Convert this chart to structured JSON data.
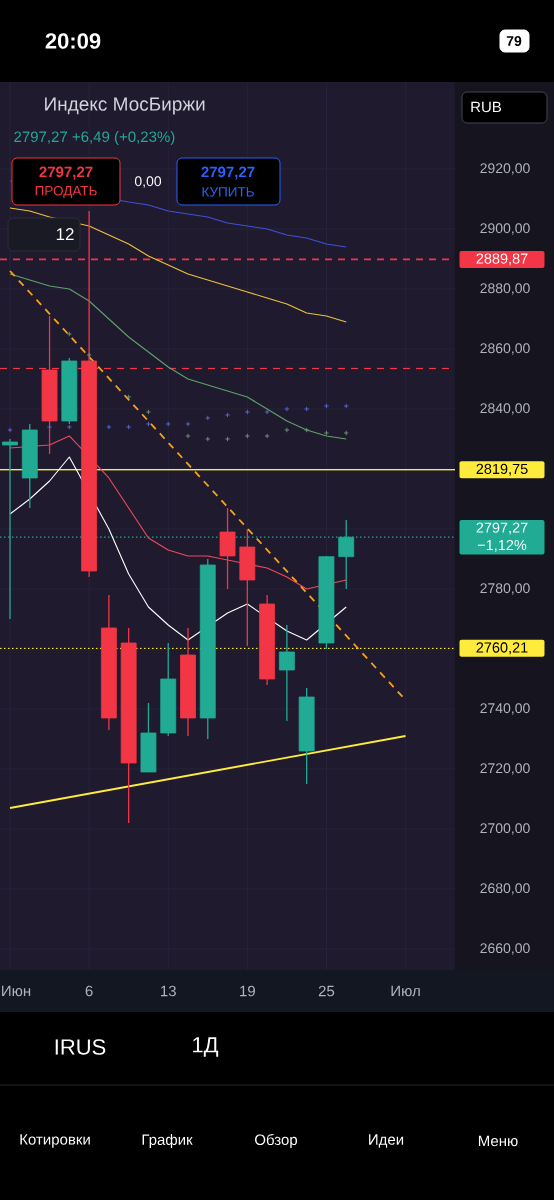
{
  "chart_data": {
    "type": "candlestick",
    "title": "Индекс МосБиржи",
    "subtitle": "2797,27 +6,49 (+0,23%)",
    "categories": [
      "Июн",
      null,
      null,
      null,
      "6",
      null,
      null,
      null,
      "13",
      null,
      null,
      null,
      "19",
      null,
      null,
      null,
      "25",
      null,
      null,
      null,
      "Июл"
    ],
    "ohlc": [
      [
        2828,
        2830,
        2770,
        2829
      ],
      [
        2817,
        2835,
        2807,
        2833
      ],
      [
        2853,
        2871,
        2825,
        2836
      ],
      [
        2836,
        2857,
        2835,
        2856
      ],
      [
        2856,
        2906,
        2784,
        2786
      ],
      [
        2767,
        2778,
        2733,
        2737
      ],
      [
        2762,
        2767,
        2702,
        2722
      ],
      [
        2719,
        2742,
        2719,
        2732
      ],
      [
        2732,
        2762,
        2731,
        2750
      ],
      [
        2758,
        2767,
        2731,
        2737
      ],
      [
        2737,
        2790,
        2730,
        2788
      ],
      [
        2799,
        2807,
        2780,
        2791
      ],
      [
        2794,
        2800,
        2761,
        2783
      ],
      [
        2775,
        2778,
        2748,
        2750
      ],
      [
        2753,
        2768,
        2736,
        2759
      ],
      [
        2726,
        2747,
        2715,
        2744
      ],
      [
        2762,
        2791,
        2760,
        2790.78
      ],
      [
        2790.78,
        2803,
        2780,
        2797.27
      ],
      null,
      null,
      null
    ],
    "colors": [
      "#22ab94",
      "#22ab94",
      "#f23645",
      "#22ab94",
      "#f23645",
      "#f23645",
      "#f23645",
      "#22ab94",
      "#22ab94",
      "#f23645",
      "#22ab94",
      "#f23645",
      "#f23645",
      "#f23645",
      "#22ab94",
      "#22ab94",
      "#22ab94",
      "#22ab94",
      null,
      null,
      null
    ],
    "series": [
      {
        "type": "line",
        "color": "#3f51d9",
        "values": [
          2916,
          null,
          null,
          null,
          null,
          null,
          2909,
          2908,
          2906,
          2905,
          2904,
          2902,
          2901,
          2900,
          2898,
          2897,
          2895,
          2894,
          null,
          null,
          null
        ]
      },
      {
        "type": "line",
        "color": "#f0c23b",
        "values": [
          2907,
          2906,
          2904,
          null,
          2901,
          2898,
          2895,
          2891,
          2888,
          2885,
          2883,
          2881,
          2879,
          2877,
          2875,
          2872,
          2871,
          2869,
          null,
          null,
          null
        ]
      },
      {
        "type": "line",
        "color": "#5ea36c",
        "values": [
          2885,
          2883,
          2881,
          2880,
          2876,
          2870,
          2864,
          2859,
          2854,
          2850,
          2848,
          2846,
          2844,
          2840,
          2836,
          2833,
          2831,
          2830,
          null,
          null,
          null
        ]
      },
      {
        "type": "line",
        "color": "#f04a5a",
        "values": [
          2827,
          null,
          2828,
          2831,
          null,
          2817,
          2807,
          2797,
          2793,
          2791,
          2791,
          null,
          null,
          2787,
          2784,
          2780,
          null,
          2783,
          null,
          null,
          null
        ]
      },
      {
        "type": "line",
        "color": "#ffffff",
        "values": [
          2805,
          2810,
          2816,
          2824,
          null,
          2800,
          2785,
          2774,
          2768,
          2763,
          null,
          2772,
          2775,
          null,
          2766,
          2763,
          null,
          2774,
          null,
          null,
          null
        ]
      },
      {
        "type": "scatter",
        "marker": "cross",
        "color": "#5b6bd8",
        "values": [
          2833,
          null,
          2834,
          2834,
          null,
          2834,
          2834,
          2835,
          2835,
          2835,
          2837,
          2838,
          2839,
          2839,
          2840,
          2840,
          2841,
          2841,
          null,
          null,
          null
        ]
      },
      {
        "type": "scatter",
        "marker": "cross",
        "color": "#6f9a7a",
        "values": [
          null,
          null,
          null,
          2865,
          2858,
          null,
          2844,
          2839,
          null,
          2831,
          2830,
          2830,
          2831,
          2831,
          2833,
          2833,
          2832,
          2832,
          null,
          null,
          null
        ]
      },
      {
        "type": "line",
        "color": "#ffeb3b",
        "line_style": "solid",
        "values": [
          2707,
          null,
          null,
          null,
          null,
          null,
          null,
          null,
          null,
          null,
          null,
          null,
          null,
          null,
          null,
          null,
          null,
          null,
          null,
          null,
          2731
        ]
      },
      {
        "type": "line",
        "color": "#f7a21b",
        "line_style": "dashed",
        "values": [
          2886,
          null,
          null,
          null,
          null,
          null,
          null,
          null,
          null,
          null,
          null,
          null,
          null,
          null,
          null,
          null,
          null,
          null,
          null,
          null,
          2743
        ]
      }
    ],
    "ylim": [
      2653,
      2949
    ],
    "yticks": [
      {
        "value": 2660,
        "label": "2660,00"
      },
      {
        "value": 2680,
        "label": "2680,00"
      },
      {
        "value": 2700,
        "label": "2700,00"
      },
      {
        "value": 2720,
        "label": "2720,00"
      },
      {
        "value": 2740,
        "label": "2740,00"
      },
      {
        "value": 2760,
        "label": null
      },
      {
        "value": 2780,
        "label": "2780,00"
      },
      {
        "value": 2800,
        "label": null
      },
      {
        "value": 2820,
        "label": null
      },
      {
        "value": 2840,
        "label": "2840,00"
      },
      {
        "value": 2860,
        "label": "2860,00"
      },
      {
        "value": 2880,
        "label": "2880,00"
      },
      {
        "value": 2900,
        "label": "2900,00"
      },
      {
        "value": 2920,
        "label": "2920,00"
      }
    ],
    "grid": true,
    "ref_lines": [
      {
        "axis": "y",
        "value": 2889.87,
        "label": "2889,87",
        "color": "#f23645",
        "line_style": "dashed"
      },
      {
        "axis": "y",
        "value": 2853.5,
        "color": "#f23645",
        "line_style": "dashed"
      },
      {
        "axis": "y",
        "value": 2819.75,
        "label": "2819,75",
        "color": "#ffeb3b",
        "line_style": "solid"
      },
      {
        "axis": "y",
        "value": 2797.27,
        "label": "2797,27 −1,12%",
        "color": "#22ab94",
        "line_style": "dotted"
      },
      {
        "axis": "y",
        "value": 2760.21,
        "label": "2760,21",
        "color": "#ffeb3b",
        "line_style": "dotted"
      }
    ],
    "annotations": [
      "20:09",
      "79",
      "2797,27",
      "ПРОДАТЬ",
      "0,00",
      "2797,27",
      "КУПИТЬ",
      "12",
      "RUB",
      "IRUS",
      "1Д",
      "Котировки",
      "График",
      "Обзор",
      "Идеи",
      "Меню"
    ]
  }
}
